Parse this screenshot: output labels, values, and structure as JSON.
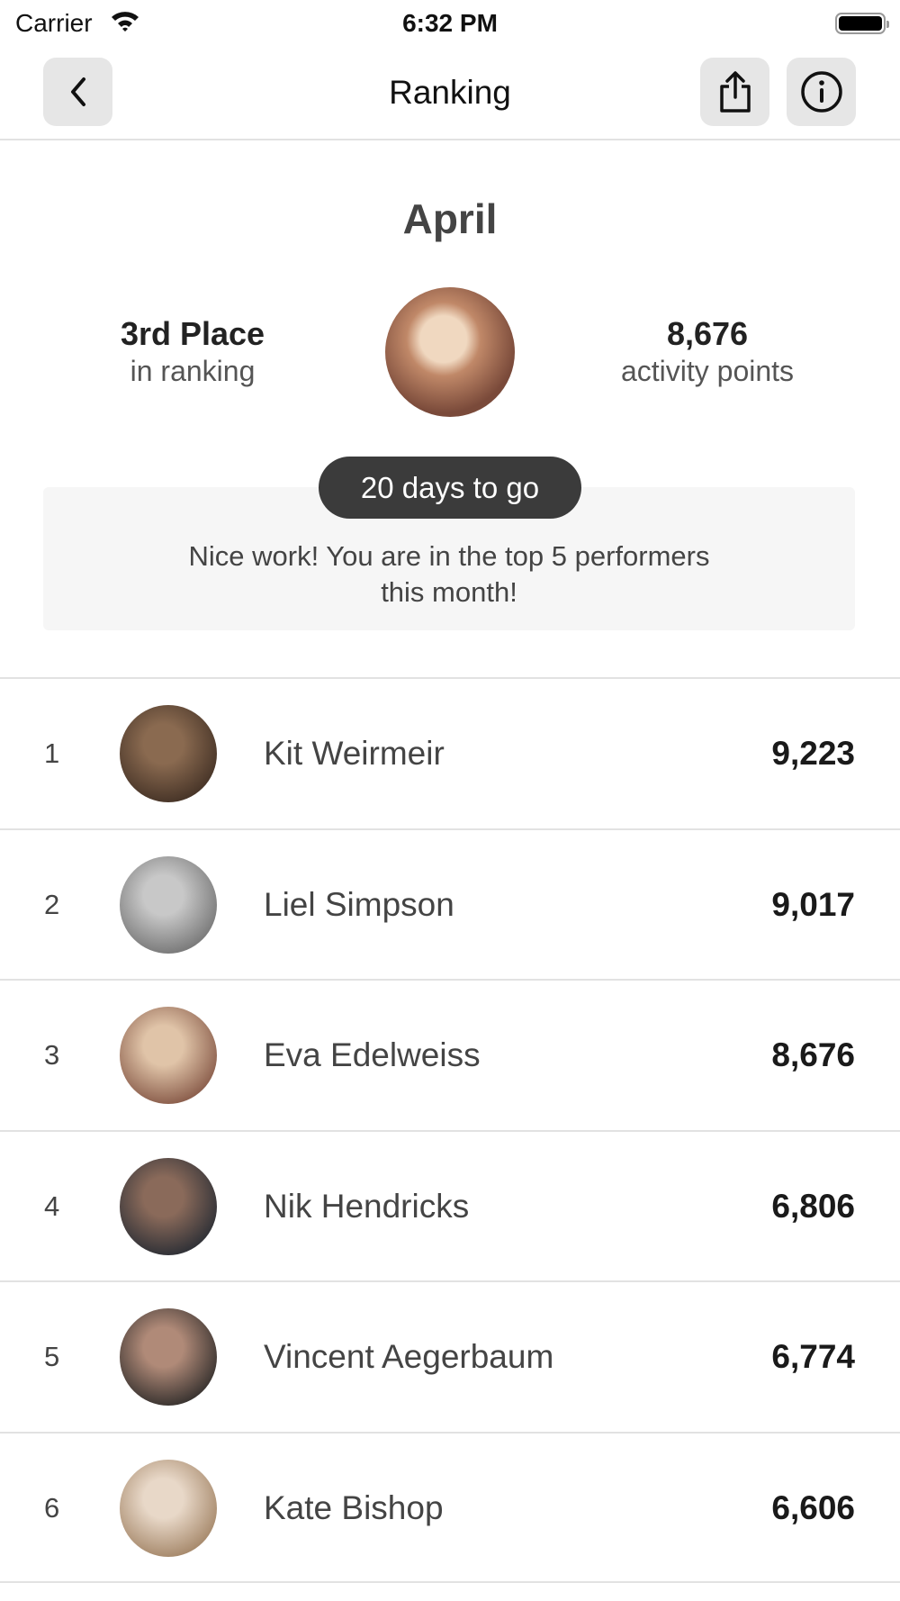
{
  "status_bar": {
    "carrier": "Carrier",
    "time": "6:32 PM"
  },
  "nav": {
    "title": "Ranking",
    "back_icon": "chevron-left-icon",
    "share_icon": "share-icon",
    "info_icon": "info-icon"
  },
  "summary": {
    "month": "April",
    "place": "3rd Place",
    "place_sub": "in ranking",
    "points": "8,676",
    "points_sub": "activity points",
    "countdown": "20 days to go",
    "message_line1": "Nice work! You are in the top 5 performers",
    "message_line2": "this month!"
  },
  "ranking": [
    {
      "rank": "1",
      "name": "Kit Weirmeir",
      "points": "9,223",
      "avatar_colors": [
        "#8a6a50",
        "#3a2a20"
      ]
    },
    {
      "rank": "2",
      "name": "Liel Simpson",
      "points": "9,017",
      "avatar_colors": [
        "#c8c8c8",
        "#6a6a6a"
      ]
    },
    {
      "rank": "3",
      "name": "Eva Edelweiss",
      "points": "8,676",
      "avatar_colors": [
        "#e0c4a8",
        "#7a4a3a"
      ]
    },
    {
      "rank": "4",
      "name": "Nik Hendricks",
      "points": "6,806",
      "avatar_colors": [
        "#8a6a5a",
        "#1e2630"
      ]
    },
    {
      "rank": "5",
      "name": "Vincent Aegerbaum",
      "points": "6,774",
      "avatar_colors": [
        "#b08a78",
        "#222"
      ]
    },
    {
      "rank": "6",
      "name": "Kate Bishop",
      "points": "6,606",
      "avatar_colors": [
        "#e8d8c8",
        "#9a7a5a"
      ]
    }
  ]
}
